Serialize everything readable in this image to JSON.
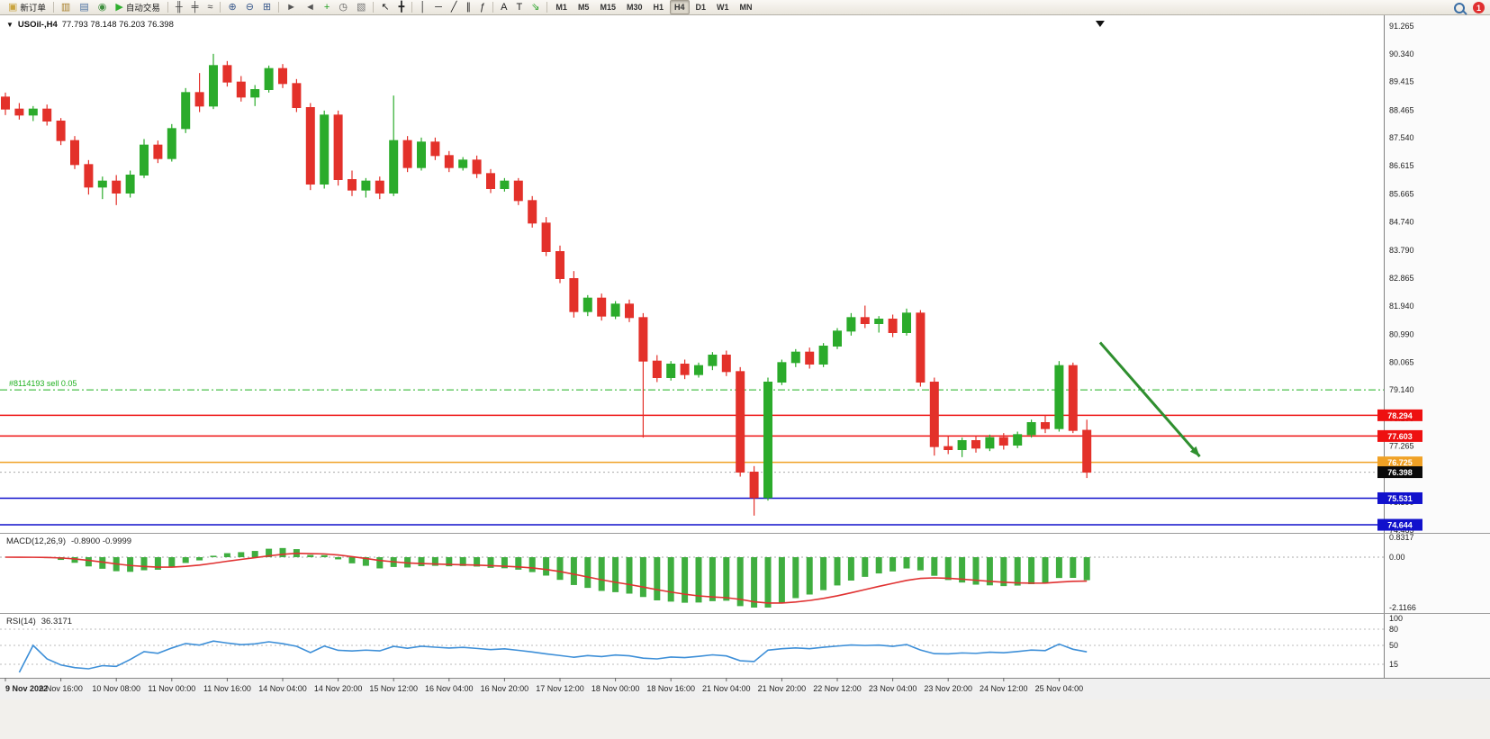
{
  "icons": {
    "chart_menu": "▼"
  },
  "toolbar": {
    "active_timeframe": "H4",
    "notification_count": "1",
    "items": [
      {
        "kind": "btn",
        "name": "new-order-button",
        "icon_name": "new-order-icon",
        "glyph": "▣",
        "color": "#c9a43f",
        "label": "新订单"
      },
      {
        "kind": "sep"
      },
      {
        "kind": "btn",
        "name": "market-watch-button",
        "icon_name": "market-watch-icon",
        "glyph": "▥",
        "color": "#a8802c"
      },
      {
        "kind": "btn",
        "name": "data-window-button",
        "icon_name": "data-window-icon",
        "glyph": "▤",
        "color": "#4a6fa0"
      },
      {
        "kind": "btn",
        "name": "history-center-button",
        "icon_name": "history-center-icon",
        "glyph": "◉",
        "color": "#3f8f3f"
      },
      {
        "kind": "btn",
        "name": "auto-trading-button",
        "icon_name": "autotrading-play-icon",
        "glyph": "▶",
        "color": "#2fae2f",
        "label": "自动交易"
      },
      {
        "kind": "sep"
      },
      {
        "kind": "btn",
        "name": "bar-chart-button",
        "icon_name": "bar-chart-icon",
        "glyph": "╫",
        "color": "#3c3c3c"
      },
      {
        "kind": "btn",
        "name": "candle-chart-button",
        "icon_name": "candle-chart-icon",
        "glyph": "╪",
        "color": "#3c3c3c"
      },
      {
        "kind": "btn",
        "name": "line-chart-button",
        "icon_name": "line-chart-icon",
        "glyph": "≈",
        "color": "#3c3c3c"
      },
      {
        "kind": "sep"
      },
      {
        "kind": "btn",
        "name": "zoom-in-button",
        "icon_name": "zoom-in-icon",
        "glyph": "⊕",
        "color": "#39598c"
      },
      {
        "kind": "btn",
        "name": "zoom-out-button",
        "icon_name": "zoom-out-icon",
        "glyph": "⊖",
        "color": "#39598c"
      },
      {
        "kind": "btn",
        "name": "tile-windows-button",
        "icon_name": "tile-windows-icon",
        "glyph": "⊞",
        "color": "#39598c"
      },
      {
        "kind": "sep"
      },
      {
        "kind": "btn",
        "name": "auto-scroll-button",
        "icon_name": "auto-scroll-icon",
        "glyph": "►",
        "color": "#555555"
      },
      {
        "kind": "btn",
        "name": "chart-shift-button",
        "icon_name": "chart-shift-icon",
        "glyph": "◄",
        "color": "#555555"
      },
      {
        "kind": "btn",
        "name": "indicators-button",
        "icon_name": "add-indicator-icon",
        "glyph": "+",
        "color": "#1e9e1e"
      },
      {
        "kind": "btn",
        "name": "periods-button",
        "icon_name": "clock-icon",
        "glyph": "◷",
        "color": "#555555"
      },
      {
        "kind": "btn",
        "name": "templates-button",
        "icon_name": "template-icon",
        "glyph": "▧",
        "color": "#777777"
      },
      {
        "kind": "sep"
      },
      {
        "kind": "btn",
        "name": "cursor-button",
        "icon_name": "cursor-icon",
        "glyph": "↖",
        "color": "#222222"
      },
      {
        "kind": "btn",
        "name": "crosshair-button",
        "icon_name": "crosshair-icon",
        "glyph": "╋",
        "color": "#222222"
      },
      {
        "kind": "sep"
      },
      {
        "kind": "btn",
        "name": "vertical-line-button",
        "icon_name": "vertical-line-icon",
        "glyph": "│",
        "color": "#222222"
      },
      {
        "kind": "btn",
        "name": "horizontal-line-button",
        "icon_name": "horizontal-line-icon",
        "glyph": "─",
        "color": "#222222"
      },
      {
        "kind": "btn",
        "name": "trendline-button",
        "icon_name": "trendline-icon",
        "glyph": "╱",
        "color": "#222222"
      },
      {
        "kind": "btn",
        "name": "channel-button",
        "icon_name": "channel-icon",
        "glyph": "∥",
        "color": "#222222"
      },
      {
        "kind": "btn",
        "name": "fibonacci-button",
        "icon_name": "fibonacci-icon",
        "glyph": "ƒ",
        "color": "#222222"
      },
      {
        "kind": "sep"
      },
      {
        "kind": "btn",
        "name": "text-button",
        "icon_name": "text-icon",
        "glyph": "A",
        "color": "#222222"
      },
      {
        "kind": "btn",
        "name": "text-label-button",
        "icon_name": "text-label-icon",
        "glyph": "T",
        "color": "#222222"
      },
      {
        "kind": "btn",
        "name": "arrows-button",
        "icon_name": "arrow-tool-icon",
        "glyph": "⇘",
        "color": "#1e9e1e"
      },
      {
        "kind": "sep"
      },
      {
        "kind": "tf",
        "label": "M1"
      },
      {
        "kind": "tf",
        "label": "M5"
      },
      {
        "kind": "tf",
        "label": "M15"
      },
      {
        "kind": "tf",
        "label": "M30"
      },
      {
        "kind": "tf",
        "label": "H1"
      },
      {
        "kind": "tf",
        "label": "H4"
      },
      {
        "kind": "tf",
        "label": "D1"
      },
      {
        "kind": "tf",
        "label": "W1"
      },
      {
        "kind": "tf",
        "label": "MN"
      }
    ]
  },
  "chart": {
    "symbol_title": "USOil-,H4",
    "ohlc_text": "77.793 78.148 76.203 76.398"
  },
  "chart_data": {
    "type": "candlestick",
    "symbol": "USOil-",
    "timeframe": "H4",
    "last_ohlc": {
      "open": 77.793,
      "high": 78.148,
      "low": 76.203,
      "close": 76.398
    },
    "colors": {
      "up": "#2bab2b",
      "down": "#e3312a",
      "macd_hist": "#3fae3f",
      "macd_signal": "#e03131",
      "rsi": "#3d8fd8",
      "sell_line": "#1fb01f"
    },
    "price_axis": {
      "min": 74.465,
      "max": 91.265,
      "labels": [
        "91.265",
        "90.340",
        "89.415",
        "88.465",
        "87.540",
        "86.615",
        "85.665",
        "84.740",
        "83.790",
        "82.865",
        "81.940",
        "80.990",
        "80.065",
        "79.140",
        "78.190",
        "77.265",
        "76.340",
        "75.390",
        "74.465"
      ]
    },
    "time_labels": [
      "9 Nov 2022",
      "9 Nov 16:00",
      "10 Nov 08:00",
      "11 Nov 00:00",
      "11 Nov 16:00",
      "14 Nov 04:00",
      "14 Nov 20:00",
      "15 Nov 12:00",
      "16 Nov 04:00",
      "16 Nov 20:00",
      "17 Nov 12:00",
      "18 Nov 00:00",
      "18 Nov 16:00",
      "21 Nov 04:00",
      "21 Nov 20:00",
      "22 Nov 12:00",
      "23 Nov 04:00",
      "23 Nov 20:00",
      "24 Nov 12:00",
      "25 Nov 04:00"
    ],
    "label_every": 4,
    "candles": [
      [
        88.9,
        89.05,
        88.3,
        88.5
      ],
      [
        88.5,
        88.7,
        88.15,
        88.3
      ],
      [
        88.3,
        88.6,
        88.1,
        88.5
      ],
      [
        88.5,
        88.65,
        87.95,
        88.1
      ],
      [
        88.1,
        88.2,
        87.3,
        87.45
      ],
      [
        87.45,
        87.6,
        86.5,
        86.65
      ],
      [
        86.65,
        86.8,
        85.65,
        85.9
      ],
      [
        85.9,
        86.25,
        85.5,
        86.1
      ],
      [
        86.1,
        86.3,
        85.3,
        85.7
      ],
      [
        85.7,
        86.45,
        85.55,
        86.3
      ],
      [
        86.3,
        87.5,
        86.2,
        87.3
      ],
      [
        87.3,
        87.45,
        86.7,
        86.85
      ],
      [
        86.85,
        88.0,
        86.75,
        87.85
      ],
      [
        87.85,
        89.2,
        87.7,
        89.05
      ],
      [
        89.05,
        89.7,
        88.4,
        88.6
      ],
      [
        88.6,
        90.34,
        88.5,
        89.95
      ],
      [
        89.95,
        90.1,
        89.25,
        89.4
      ],
      [
        89.4,
        89.6,
        88.75,
        88.9
      ],
      [
        88.9,
        89.3,
        88.6,
        89.15
      ],
      [
        89.15,
        89.95,
        89.05,
        89.85
      ],
      [
        89.85,
        90.0,
        89.2,
        89.35
      ],
      [
        89.35,
        89.5,
        88.4,
        88.55
      ],
      [
        88.55,
        88.7,
        85.8,
        86.0
      ],
      [
        86.0,
        88.45,
        85.85,
        88.3
      ],
      [
        88.3,
        88.45,
        85.95,
        86.15
      ],
      [
        86.15,
        86.45,
        85.6,
        85.8
      ],
      [
        85.8,
        86.2,
        85.55,
        86.1
      ],
      [
        86.1,
        86.25,
        85.5,
        85.7
      ],
      [
        85.7,
        88.95,
        85.6,
        87.45
      ],
      [
        87.45,
        87.6,
        86.4,
        86.55
      ],
      [
        86.55,
        87.55,
        86.45,
        87.4
      ],
      [
        87.4,
        87.55,
        86.8,
        86.95
      ],
      [
        86.95,
        87.1,
        86.4,
        86.55
      ],
      [
        86.55,
        86.9,
        86.45,
        86.8
      ],
      [
        86.8,
        86.95,
        86.2,
        86.35
      ],
      [
        86.35,
        86.5,
        85.7,
        85.85
      ],
      [
        85.85,
        86.2,
        85.75,
        86.1
      ],
      [
        86.1,
        86.2,
        85.3,
        85.45
      ],
      [
        85.45,
        85.6,
        84.55,
        84.7
      ],
      [
        84.7,
        84.9,
        83.6,
        83.75
      ],
      [
        83.75,
        83.95,
        82.7,
        82.85
      ],
      [
        82.85,
        83.1,
        81.55,
        81.75
      ],
      [
        81.75,
        82.3,
        81.6,
        82.2
      ],
      [
        82.2,
        82.35,
        81.45,
        81.6
      ],
      [
        81.6,
        82.1,
        81.5,
        82.0
      ],
      [
        82.0,
        82.15,
        81.4,
        81.55
      ],
      [
        81.55,
        81.7,
        77.55,
        80.1
      ],
      [
        80.1,
        80.3,
        79.4,
        79.55
      ],
      [
        79.55,
        80.1,
        79.45,
        80.0
      ],
      [
        80.0,
        80.15,
        79.5,
        79.65
      ],
      [
        79.65,
        80.05,
        79.55,
        79.95
      ],
      [
        79.95,
        80.4,
        79.8,
        80.3
      ],
      [
        80.3,
        80.45,
        79.6,
        79.75
      ],
      [
        79.75,
        79.9,
        76.25,
        76.4
      ],
      [
        76.4,
        76.6,
        74.95,
        75.55
      ],
      [
        75.55,
        79.55,
        75.45,
        79.4
      ],
      [
        79.4,
        80.15,
        79.3,
        80.05
      ],
      [
        80.05,
        80.5,
        79.9,
        80.4
      ],
      [
        80.4,
        80.55,
        79.85,
        80.0
      ],
      [
        80.0,
        80.7,
        79.9,
        80.6
      ],
      [
        80.6,
        81.2,
        80.5,
        81.1
      ],
      [
        81.1,
        81.7,
        80.95,
        81.55
      ],
      [
        81.55,
        81.95,
        81.2,
        81.35
      ],
      [
        81.35,
        81.6,
        81.05,
        81.5
      ],
      [
        81.5,
        81.65,
        80.9,
        81.05
      ],
      [
        81.05,
        81.85,
        80.95,
        81.7
      ],
      [
        81.7,
        81.8,
        79.25,
        79.4
      ],
      [
        79.4,
        79.55,
        76.95,
        77.25
      ],
      [
        77.25,
        77.6,
        77.0,
        77.15
      ],
      [
        77.15,
        77.55,
        76.9,
        77.45
      ],
      [
        77.45,
        77.6,
        77.05,
        77.2
      ],
      [
        77.2,
        77.65,
        77.1,
        77.55
      ],
      [
        77.55,
        77.7,
        77.15,
        77.3
      ],
      [
        77.3,
        77.75,
        77.2,
        77.65
      ],
      [
        77.65,
        78.15,
        77.55,
        78.05
      ],
      [
        78.05,
        78.3,
        77.7,
        77.85
      ],
      [
        77.85,
        80.1,
        77.75,
        79.95
      ],
      [
        79.95,
        80.05,
        77.7,
        77.79
      ],
      [
        77.793,
        78.148,
        76.203,
        76.398
      ]
    ],
    "hlines": [
      {
        "price": 79.14,
        "color": "#1fb01f",
        "dash": "8 3 2 3",
        "width": 1,
        "badge": null,
        "text": "#8114193 sell 0.05"
      },
      {
        "price": 78.294,
        "color": "#ee1111",
        "dash": null,
        "width": 1.5,
        "badge": {
          "bg": "#ee1111",
          "text": "78.294"
        }
      },
      {
        "price": 77.603,
        "color": "#ee1111",
        "dash": null,
        "width": 1.5,
        "badge": {
          "bg": "#ee1111",
          "text": "77.603"
        }
      },
      {
        "price": 76.725,
        "color": "#f0a125",
        "dash": null,
        "width": 1.5,
        "badge": {
          "bg": "#f0a125",
          "text": "76.725"
        }
      },
      {
        "price": 76.398,
        "color": "#aaaaaa",
        "dash": "2 3",
        "width": 1,
        "badge": {
          "bg": "#0a0a0a",
          "text": "76.398"
        }
      },
      {
        "price": 75.531,
        "color": "#1111cc",
        "dash": null,
        "width": 1.5,
        "badge": {
          "bg": "#1111cc",
          "text": "75.531"
        }
      },
      {
        "price": 74.644,
        "color": "#1111cc",
        "dash": null,
        "width": 1.5,
        "badge": {
          "bg": "#1111cc",
          "text": "74.644"
        }
      }
    ],
    "arrow": {
      "from_frac": 0.795,
      "from_price": 80.72,
      "to_frac": 0.867,
      "to_price": 76.92,
      "color": "#2f8f2f"
    },
    "shift_marker_frac": 0.795,
    "macd": {
      "title": "MACD(12,26,9)",
      "values_text": "-0.8900 -0.9999",
      "fast": 12,
      "slow": 26,
      "signal": 9,
      "max": 0.8317,
      "min": -2.1166,
      "scale_labels": [
        {
          "v": 0.8317,
          "t": "0.8317"
        },
        {
          "v": 0,
          "t": "0.00"
        },
        {
          "v": -2.1166,
          "t": "-2.1166"
        }
      ]
    },
    "rsi": {
      "title": "RSI(14)",
      "value_text": "36.3171",
      "period": 14,
      "levels": [
        80,
        50,
        15
      ],
      "scale_labels": [
        {
          "v": 100,
          "t": "100"
        },
        {
          "v": 80,
          "t": "80"
        },
        {
          "v": 50,
          "t": "50"
        },
        {
          "v": 15,
          "t": "15"
        }
      ]
    }
  }
}
